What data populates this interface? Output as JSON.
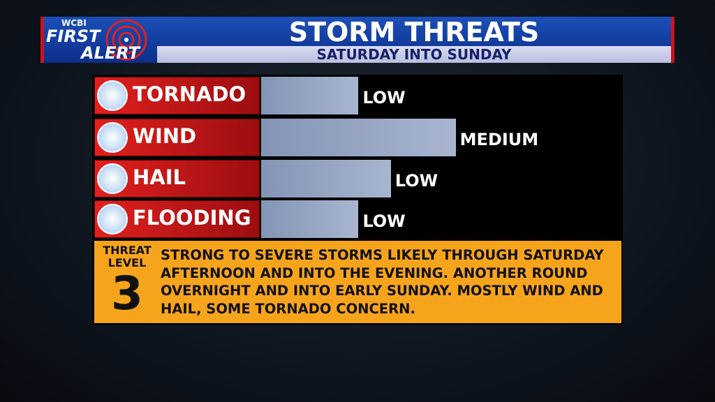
{
  "header": {
    "logo": {
      "station": "WCBI",
      "line1": "FIRST",
      "line2": "ALERT"
    },
    "title": "STORM THREATS",
    "subtitle": "SATURDAY INTO SUNDAY"
  },
  "chart_data": {
    "type": "bar",
    "categories": [
      "TORNADO",
      "WIND",
      "HAIL",
      "FLOODING"
    ],
    "values": [
      27,
      54,
      36,
      27
    ],
    "value_labels": [
      "LOW",
      "MEDIUM",
      "LOW",
      "LOW"
    ],
    "xlim": [
      0,
      100
    ],
    "color": "#a9b5cf"
  },
  "threat": {
    "label": "THREAT LEVEL",
    "level": 3,
    "text": "STRONG TO SEVERE STORMS LIKELY THROUGH SATURDAY AFTERNOON AND INTO THE EVENING. ANOTHER ROUND OVERNIGHT AND INTO EARLY SUNDAY. MOSTLY WIND AND HAIL, SOME TORNADO CONCERN."
  }
}
